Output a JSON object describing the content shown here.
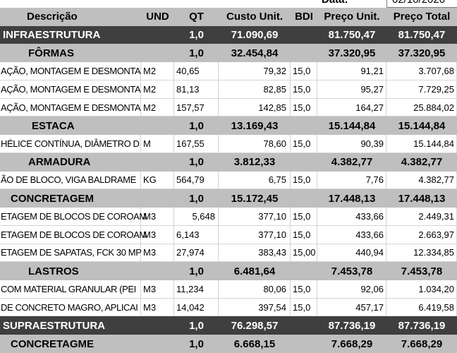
{
  "colors": {
    "section_row": "#3f3f3f",
    "section_text": "#ffffff",
    "group_row": "#bfbfbf",
    "header_row": "#bfbfbf",
    "gridline": "#d4d4d4"
  },
  "top": {
    "date_label": "Data:",
    "date_value": "02/10/2020"
  },
  "header": {
    "descricao": "Descrição",
    "und": "UND",
    "qt": "QT",
    "custo_unit": "Custo Unit.",
    "bdi": "BDI",
    "preco_unit": "Preço Unit.",
    "preco_total": "Preço Total"
  },
  "rows": [
    {
      "type": "section",
      "descricao": "INFRAESTRUTURA",
      "und": "",
      "qt": "1,0",
      "custo_unit": "71.090,69",
      "bdi": "",
      "preco_unit": "81.750,47",
      "preco_total": "81.750,47"
    },
    {
      "type": "group",
      "descricao": "FÔRMAS",
      "und": "",
      "qt": "1,0",
      "custo_unit": "32.454,84",
      "bdi": "",
      "preco_unit": "37.320,95",
      "preco_total": "37.320,95"
    },
    {
      "type": "item",
      "descricao": "AÇÃO, MONTAGEM E DESMONTA",
      "und": "M2",
      "qt": "40,65",
      "custo_unit": "79,32",
      "bdi": "15,0",
      "preco_unit": "91,21",
      "preco_total": "3.707,68"
    },
    {
      "type": "item",
      "descricao": "AÇÃO, MONTAGEM E DESMONTA",
      "und": "M2",
      "qt": "81,13",
      "custo_unit": "82,85",
      "bdi": "15,0",
      "preco_unit": "95,27",
      "preco_total": "7.729,25"
    },
    {
      "type": "item",
      "descricao": "AÇÃO, MONTAGEM E DESMONTA",
      "und": "M2",
      "qt": "157,57",
      "custo_unit": "142,85",
      "bdi": "15,0",
      "preco_unit": "164,27",
      "preco_total": "25.884,02"
    },
    {
      "type": "group",
      "descricao": "ESTACA",
      "und": "",
      "qt": "1,0",
      "custo_unit": "13.169,43",
      "bdi": "",
      "preco_unit": "15.144,84",
      "preco_total": "15.144,84"
    },
    {
      "type": "item",
      "descricao": "HÉLICE CONTÍNUA, DIÂMETRO D",
      "und": "M",
      "qt": "167,55",
      "custo_unit": "78,60",
      "bdi": "15,0",
      "preco_unit": "90,39",
      "preco_total": "15.144,84"
    },
    {
      "type": "group",
      "descricao": "ARMADURA",
      "und": "",
      "qt": "1,0",
      "custo_unit": "3.812,33",
      "bdi": "",
      "preco_unit": "4.382,77",
      "preco_total": "4.382,77"
    },
    {
      "type": "item",
      "descricao": "ÃO DE BLOCO, VIGA BALDRAME",
      "und": "KG",
      "qt": "564,79",
      "custo_unit": "6,75",
      "bdi": "15,0",
      "preco_unit": "7,76",
      "preco_total": "4.382,77"
    },
    {
      "type": "group",
      "descricao": "CONCRETAGEM",
      "und": "",
      "qt": "1,0",
      "custo_unit": "15.172,45",
      "bdi": "",
      "preco_unit": "17.448,13",
      "preco_total": "17.448,13"
    },
    {
      "type": "item",
      "descricao": "ETAGEM DE BLOCOS DE COROAM",
      "und": "M3",
      "qt": "5,648",
      "custo_unit": "377,10",
      "bdi": "15,0",
      "preco_unit": "433,66",
      "preco_total": "2.449,31"
    },
    {
      "type": "item",
      "descricao": "ETAGEM DE BLOCOS DE COROAM",
      "und": "M3",
      "qt": "6,143",
      "custo_unit": "377,10",
      "bdi": "15,0",
      "preco_unit": "433,66",
      "preco_total": "2.663,97"
    },
    {
      "type": "item",
      "descricao": "ETAGEM DE SAPATAS, FCK 30 MP",
      "und": "M3",
      "qt": "27,974",
      "custo_unit": "383,43",
      "bdi": "15,00",
      "preco_unit": "440,94",
      "preco_total": "12.334,85"
    },
    {
      "type": "group",
      "descricao": "LASTROS",
      "und": "",
      "qt": "1,0",
      "custo_unit": "6.481,64",
      "bdi": "",
      "preco_unit": "7.453,78",
      "preco_total": "7.453,78"
    },
    {
      "type": "item",
      "descricao": "COM MATERIAL GRANULAR (PEI",
      "und": "M3",
      "qt": "11,234",
      "custo_unit": "80,06",
      "bdi": "15,0",
      "preco_unit": "92,06",
      "preco_total": "1.034,20"
    },
    {
      "type": "item",
      "descricao": "DE CONCRETO MAGRO, APLICAI",
      "und": "M3",
      "qt": "14,042",
      "custo_unit": "397,54",
      "bdi": "15,0",
      "preco_unit": "457,17",
      "preco_total": "6.419,58"
    },
    {
      "type": "section",
      "descricao": "SUPRAESTRUTURA",
      "und": "",
      "qt": "1,0",
      "custo_unit": "76.298,57",
      "bdi": "",
      "preco_unit": "87.736,19",
      "preco_total": "87.736,19"
    },
    {
      "type": "group",
      "descricao": "CONCRETAGME",
      "und": "",
      "qt": "1,0",
      "custo_unit": "6.668,15",
      "bdi": "",
      "preco_unit": "7.668,29",
      "preco_total": "7.668,29"
    }
  ]
}
